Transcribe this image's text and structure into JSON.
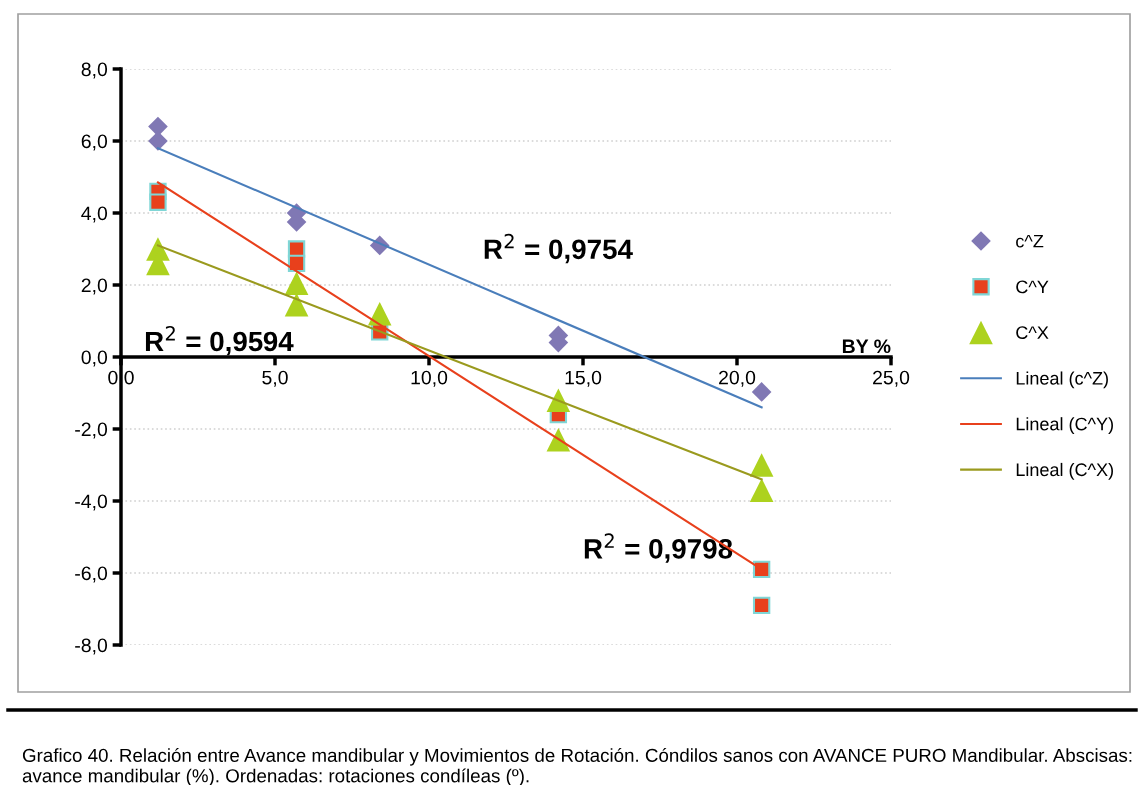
{
  "chart_data": {
    "type": "scatter",
    "xlabel": "BY %",
    "series": [
      {
        "name": "c^Z",
        "marker": "diamond",
        "color": "#8078b4",
        "x": [
          1.2,
          1.2,
          5.7,
          5.7,
          8.4,
          14.2,
          14.2,
          20.8
        ],
        "values": [
          6.4,
          6.0,
          4.0,
          3.75,
          3.1,
          0.6,
          0.4,
          -0.97
        ]
      },
      {
        "name": "C^Y",
        "marker": "square",
        "color": "#e8401c",
        "x": [
          1.2,
          1.2,
          5.7,
          5.7,
          8.4,
          14.2,
          20.8,
          20.8
        ],
        "values": [
          4.6,
          4.3,
          3.0,
          2.6,
          0.7,
          -1.6,
          -5.9,
          -6.9
        ]
      },
      {
        "name": "C^X",
        "marker": "triangle",
        "color": "#add21e",
        "x": [
          1.2,
          1.2,
          5.7,
          5.7,
          8.4,
          14.2,
          14.2,
          20.8,
          20.8
        ],
        "values": [
          3.0,
          2.6,
          2.05,
          1.45,
          1.2,
          -1.2,
          -2.3,
          -3.0,
          -3.7
        ]
      },
      {
        "name": "Lineal (c^Z)",
        "type": "line",
        "marker": "none",
        "color": "#4a7ebb",
        "x": [
          1.2,
          20.8
        ],
        "values": [
          5.8,
          -1.4
        ]
      },
      {
        "name": "Lineal (C^Y)",
        "type": "line",
        "marker": "none",
        "color": "#e8401c",
        "x": [
          1.2,
          20.8
        ],
        "values": [
          4.85,
          -5.9
        ]
      },
      {
        "name": "Lineal (C^X)",
        "type": "line",
        "marker": "none",
        "color": "#9a9a1e",
        "x": [
          1.2,
          20.8
        ],
        "values": [
          3.1,
          -3.4
        ]
      }
    ],
    "xlim": [
      0,
      25
    ],
    "xticks": [
      {
        "value": 0,
        "label": "0,0"
      },
      {
        "value": 5,
        "label": "5,0"
      },
      {
        "value": 10,
        "label": "10,0"
      },
      {
        "value": 15,
        "label": "15,0"
      },
      {
        "value": 20,
        "label": "20,0"
      },
      {
        "value": 25,
        "label": "25,0"
      }
    ],
    "ylim": [
      -8,
      8
    ],
    "yticks": [
      {
        "value": -8,
        "label": "-8,0"
      },
      {
        "value": -6,
        "label": "-6,0"
      },
      {
        "value": -4,
        "label": "-4,0"
      },
      {
        "value": -2,
        "label": "-2,0"
      },
      {
        "value": 0,
        "label": "0,0"
      },
      {
        "value": 2,
        "label": "2,0"
      },
      {
        "value": 4,
        "label": "4,0"
      },
      {
        "value": 6,
        "label": "6,0"
      },
      {
        "value": 8,
        "label": "8,0"
      }
    ],
    "grid": "y",
    "legend": "right",
    "annotations": [
      "R$^{2}$ = 0,9754",
      "R$^{2}$ = 0,9594",
      "R$^{2}$ = 0,9798",
      "Grafico 40. Relación entre Avance mandibular y Movimientos de Rotación. Cóndilos sanos con AVANCE PURO Mandibular. Abscisas: avance mandibular (%). Ordenadas: rotaciones condíleas (º)."
    ]
  }
}
